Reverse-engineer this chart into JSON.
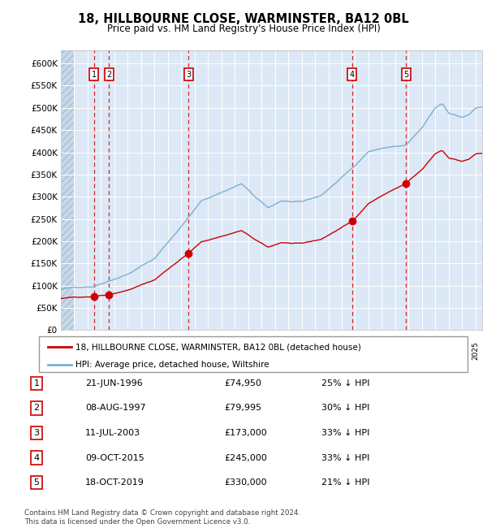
{
  "title": "18, HILLBOURNE CLOSE, WARMINSTER, BA12 0BL",
  "subtitle": "Price paid vs. HM Land Registry's House Price Index (HPI)",
  "xlim_start": 1994.0,
  "xlim_end": 2025.5,
  "ylim_min": 0,
  "ylim_max": 630000,
  "yticks": [
    0,
    50000,
    100000,
    150000,
    200000,
    250000,
    300000,
    350000,
    400000,
    450000,
    500000,
    550000,
    600000
  ],
  "ytick_labels": [
    "£0",
    "£50K",
    "£100K",
    "£150K",
    "£200K",
    "£250K",
    "£300K",
    "£350K",
    "£400K",
    "£450K",
    "£500K",
    "£550K",
    "£600K"
  ],
  "hpi_color": "#7bafd4",
  "price_color": "#cc0000",
  "sale_dates": [
    1996.47,
    1997.6,
    2003.53,
    2015.77,
    2019.8
  ],
  "sale_prices": [
    74950,
    79995,
    173000,
    245000,
    330000
  ],
  "sale_labels": [
    "1",
    "2",
    "3",
    "4",
    "5"
  ],
  "sale_info": [
    {
      "num": "1",
      "date": "21-JUN-1996",
      "price": "£74,950",
      "pct": "25% ↓ HPI"
    },
    {
      "num": "2",
      "date": "08-AUG-1997",
      "price": "£79,995",
      "pct": "30% ↓ HPI"
    },
    {
      "num": "3",
      "date": "11-JUL-2003",
      "price": "£173,000",
      "pct": "33% ↓ HPI"
    },
    {
      "num": "4",
      "date": "09-OCT-2015",
      "price": "£245,000",
      "pct": "33% ↓ HPI"
    },
    {
      "num": "5",
      "date": "18-OCT-2019",
      "price": "£330,000",
      "pct": "21% ↓ HPI"
    }
  ],
  "legend_label_price": "18, HILLBOURNE CLOSE, WARMINSTER, BA12 0BL (detached house)",
  "legend_label_hpi": "HPI: Average price, detached house, Wiltshire",
  "footnote": "Contains HM Land Registry data © Crown copyright and database right 2024.\nThis data is licensed under the Open Government Licence v3.0.",
  "bg_color": "#dce8f5",
  "hatch_left_end": 1995.0
}
